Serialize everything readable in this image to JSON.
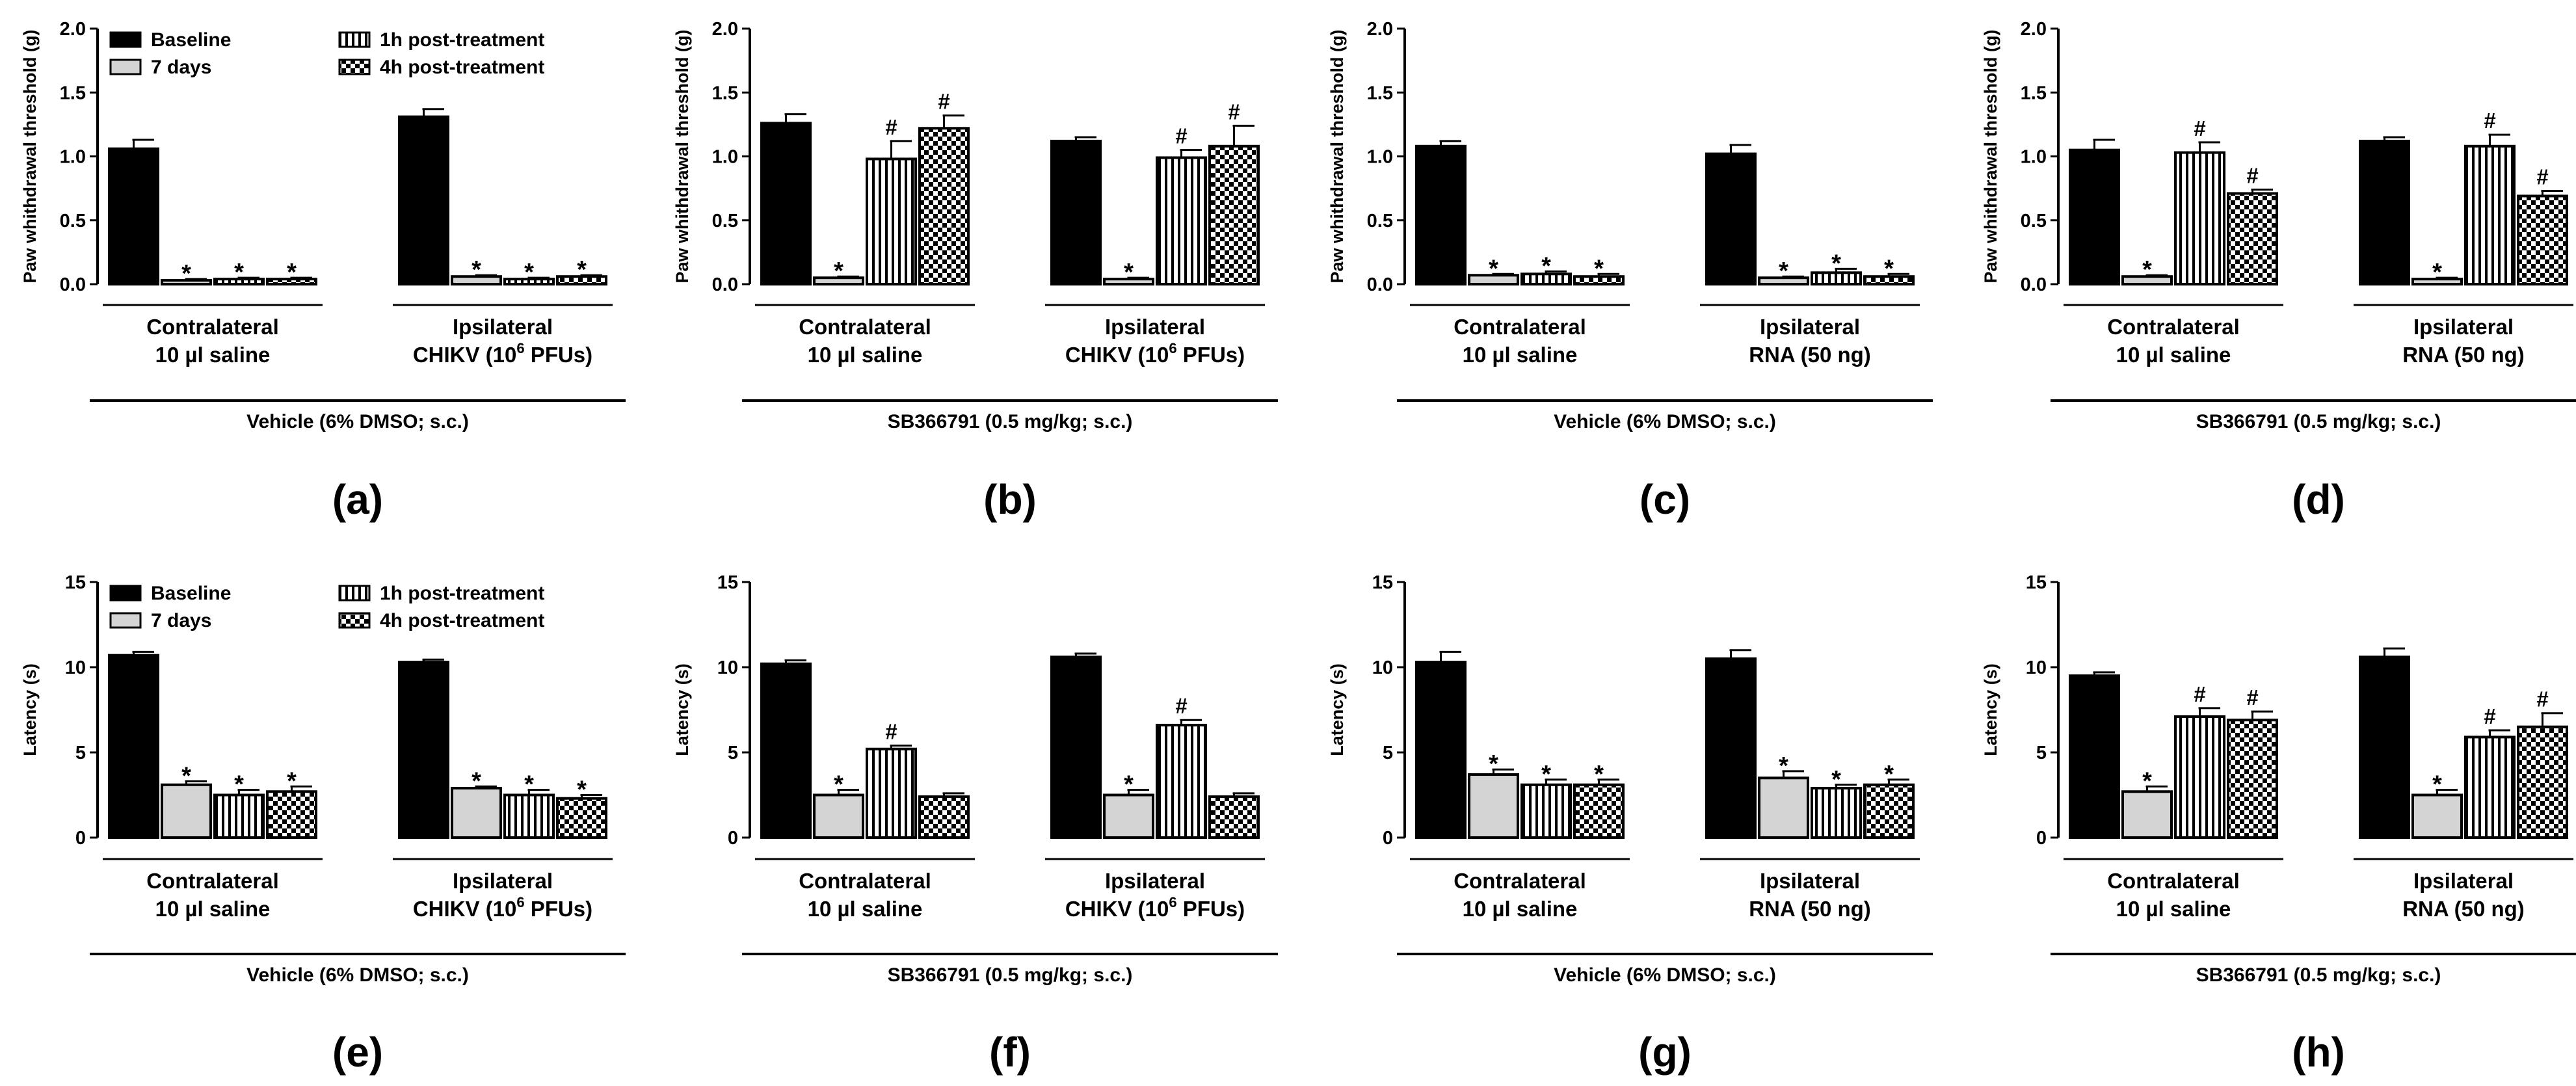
{
  "chart_data": [
    {
      "panel": "(a)",
      "type": "bar",
      "ylabel": "Paw whithdrawal threshold (g)",
      "ylim": [
        0,
        2.0
      ],
      "yticks": [
        "0.0",
        "0.5",
        "1.0",
        "1.5",
        "2.0"
      ],
      "legend": [
        "Baseline",
        "7 days",
        "1h post-treatment",
        "4h post-treatment"
      ],
      "groups": [
        {
          "line1": "Contralateral",
          "line2": "10 µl saline",
          "values": [
            1.06,
            0.03,
            0.04,
            0.04
          ],
          "errors": [
            0.07,
            0.01,
            0.01,
            0.01
          ],
          "marks": [
            "",
            "*",
            "*",
            "*"
          ]
        },
        {
          "line1": "Ipsilateral",
          "line2": "CHIKV (10",
          "sup": "6",
          "line2b": " PFUs)",
          "values": [
            1.31,
            0.06,
            0.04,
            0.06
          ],
          "errors": [
            0.06,
            0.01,
            0.01,
            0.01
          ],
          "marks": [
            "",
            "*",
            "*",
            "*"
          ]
        }
      ],
      "treatment": "Vehicle (6% DMSO; s.c.)"
    },
    {
      "panel": "(b)",
      "type": "bar",
      "ylabel": "Paw whithdrawal threshold (g)",
      "ylim": [
        0,
        2.0
      ],
      "yticks": [
        "0.0",
        "0.5",
        "1.0",
        "1.5",
        "2.0"
      ],
      "groups": [
        {
          "line1": "Contralateral",
          "line2": "10 µl saline",
          "values": [
            1.26,
            0.05,
            0.98,
            1.22
          ],
          "errors": [
            0.07,
            0.01,
            0.14,
            0.1
          ],
          "marks": [
            "",
            "*",
            "#",
            "#"
          ]
        },
        {
          "line1": "Ipsilateral",
          "line2": "CHIKV (10",
          "sup": "6",
          "line2b": " PFUs)",
          "values": [
            1.12,
            0.04,
            0.99,
            1.08
          ],
          "errors": [
            0.03,
            0.01,
            0.06,
            0.16
          ],
          "marks": [
            "",
            "*",
            "#",
            "#"
          ]
        }
      ],
      "treatment": "SB366791 (0.5 mg/kg; s.c.)"
    },
    {
      "panel": "(c)",
      "type": "bar",
      "ylabel": "Paw whithdrawal threshold (g)",
      "ylim": [
        0,
        2.0
      ],
      "yticks": [
        "0.0",
        "0.5",
        "1.0",
        "1.5",
        "2.0"
      ],
      "groups": [
        {
          "line1": "Contralateral",
          "line2": "10 µl saline",
          "values": [
            1.08,
            0.07,
            0.08,
            0.06
          ],
          "errors": [
            0.04,
            0.01,
            0.02,
            0.02
          ],
          "marks": [
            "",
            "*",
            "*",
            "*"
          ]
        },
        {
          "line1": "Ipsilateral",
          "line2": "RNA (50 ng)",
          "values": [
            1.02,
            0.05,
            0.09,
            0.06
          ],
          "errors": [
            0.07,
            0.01,
            0.03,
            0.02
          ],
          "marks": [
            "",
            "*",
            "*",
            "*"
          ]
        }
      ],
      "treatment": "Vehicle (6% DMSO; s.c.)"
    },
    {
      "panel": "(d)",
      "type": "bar",
      "ylabel": "Paw whithdrawal threshold (g)",
      "ylim": [
        0,
        2.0
      ],
      "yticks": [
        "0.0",
        "0.5",
        "1.0",
        "1.5",
        "2.0"
      ],
      "groups": [
        {
          "line1": "Contralateral",
          "line2": "10 µl saline",
          "values": [
            1.05,
            0.06,
            1.03,
            0.71
          ],
          "errors": [
            0.08,
            0.01,
            0.08,
            0.03
          ],
          "marks": [
            "",
            "*",
            "#",
            "#"
          ]
        },
        {
          "line1": "Ipsilateral",
          "line2": "RNA (50 ng)",
          "values": [
            1.12,
            0.04,
            1.08,
            0.69
          ],
          "errors": [
            0.03,
            0.01,
            0.09,
            0.04
          ],
          "marks": [
            "",
            "*",
            "#",
            "#"
          ]
        }
      ],
      "treatment": "SB366791 (0.5 mg/kg; s.c.)"
    },
    {
      "panel": "(e)",
      "type": "bar",
      "ylabel": "Latency (s)",
      "ylim": [
        0,
        15
      ],
      "yticks": [
        "0",
        "5",
        "10",
        "15"
      ],
      "legend": [
        "Baseline",
        "7 days",
        "1h post-treatment",
        "4h post-treatment"
      ],
      "groups": [
        {
          "line1": "Contralateral",
          "line2": "10 µl saline",
          "values": [
            10.7,
            3.1,
            2.5,
            2.7
          ],
          "errors": [
            0.2,
            0.2,
            0.3,
            0.3
          ],
          "marks": [
            "",
            "*",
            "*",
            "*"
          ]
        },
        {
          "line1": "Ipsilateral",
          "line2": "CHIKV (10",
          "sup": "6",
          "line2b": " PFUs)",
          "values": [
            10.3,
            2.9,
            2.5,
            2.3
          ],
          "errors": [
            0.15,
            0.1,
            0.3,
            0.2
          ],
          "marks": [
            "",
            "*",
            "*",
            "*"
          ]
        }
      ],
      "treatment": "Vehicle (6% DMSO; s.c.)"
    },
    {
      "panel": "(f)",
      "type": "bar",
      "ylabel": "Latency (s)",
      "ylim": [
        0,
        15
      ],
      "yticks": [
        "0",
        "5",
        "10",
        "15"
      ],
      "groups": [
        {
          "line1": "Contralateral",
          "line2": "10 µl saline",
          "values": [
            10.2,
            2.5,
            5.2,
            2.4
          ],
          "errors": [
            0.2,
            0.3,
            0.2,
            0.2
          ],
          "marks": [
            "",
            "*",
            "#",
            ""
          ]
        },
        {
          "line1": "Ipsilateral",
          "line2": "CHIKV (10",
          "sup": "6",
          "line2b": " PFUs)",
          "values": [
            10.6,
            2.5,
            6.6,
            2.4
          ],
          "errors": [
            0.2,
            0.3,
            0.3,
            0.2
          ],
          "marks": [
            "",
            "*",
            "#",
            ""
          ]
        }
      ],
      "treatment": "SB366791 (0.5 mg/kg; s.c.)"
    },
    {
      "panel": "(g)",
      "type": "bar",
      "ylabel": "Latency (s)",
      "ylim": [
        0,
        15
      ],
      "yticks": [
        "0",
        "5",
        "10",
        "15"
      ],
      "groups": [
        {
          "line1": "Contralateral",
          "line2": "10 µl saline",
          "values": [
            10.3,
            3.7,
            3.1,
            3.1
          ],
          "errors": [
            0.6,
            0.3,
            0.3,
            0.3
          ],
          "marks": [
            "",
            "*",
            "*",
            "*"
          ]
        },
        {
          "line1": "Ipsilateral",
          "line2": "RNA (50 ng)",
          "values": [
            10.5,
            3.5,
            2.9,
            3.1
          ],
          "errors": [
            0.5,
            0.4,
            0.2,
            0.3
          ],
          "marks": [
            "",
            "*",
            "*",
            "*"
          ]
        }
      ],
      "treatment": "Vehicle (6% DMSO; s.c.)"
    },
    {
      "panel": "(h)",
      "type": "bar",
      "ylabel": "Latency (s)",
      "ylim": [
        0,
        15
      ],
      "yticks": [
        "0",
        "5",
        "10",
        "15"
      ],
      "groups": [
        {
          "line1": "Contralateral",
          "line2": "10 µl saline",
          "values": [
            9.5,
            2.7,
            7.1,
            6.9
          ],
          "errors": [
            0.2,
            0.3,
            0.5,
            0.5
          ],
          "marks": [
            "",
            "*",
            "#",
            "#"
          ]
        },
        {
          "line1": "Ipsilateral",
          "line2": "RNA (50 ng)",
          "values": [
            10.6,
            2.5,
            5.9,
            6.5
          ],
          "errors": [
            0.5,
            0.3,
            0.4,
            0.8
          ],
          "marks": [
            "",
            "*",
            "#",
            "#"
          ]
        }
      ],
      "treatment": "SB366791 (0.5 mg/kg; s.c.)"
    }
  ],
  "colors": {
    "ink": "#000000",
    "light_bar": "#d4d4d4",
    "paper": "#ffffff"
  },
  "patterns": [
    "solid-black",
    "solid-light",
    "vertical-stripes",
    "checker"
  ]
}
